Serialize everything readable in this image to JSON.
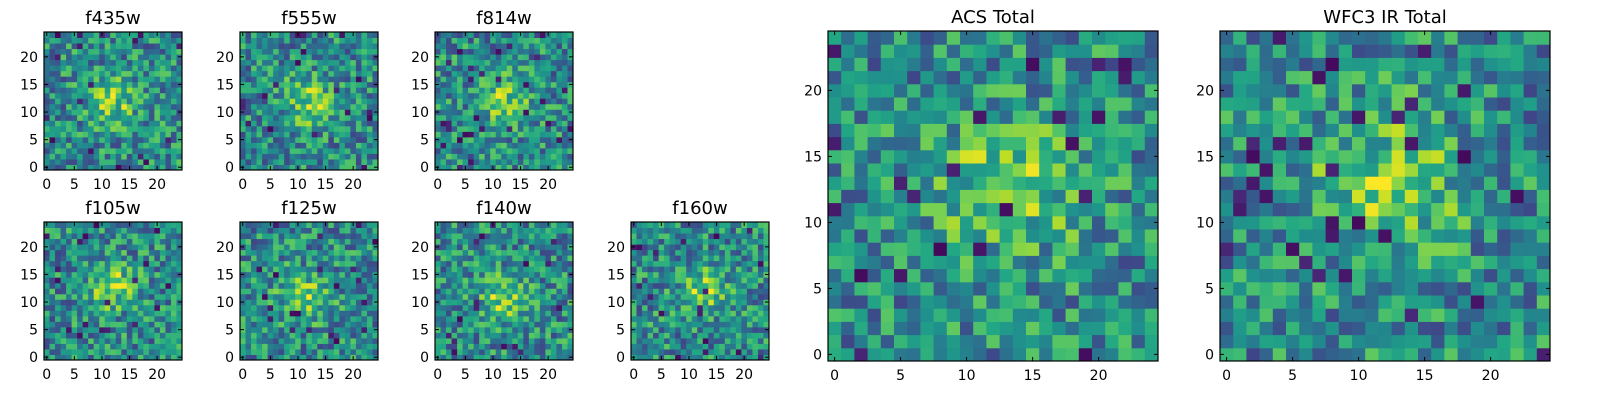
{
  "figure": {
    "colormap": "viridis",
    "grid_size": 25,
    "axis_range": [
      0,
      24
    ],
    "panels_top_row": [
      "f435w",
      "f555w",
      "f814w"
    ],
    "panels_bottom_row": [
      "f105w",
      "f125w",
      "f140w",
      "f160w"
    ],
    "panels_large": [
      "ACS Total",
      "WFC3 IR Total"
    ]
  },
  "chart_data": [
    {
      "type": "heatmap",
      "title": "f435w",
      "xticks": [
        "0",
        "5",
        "10",
        "15",
        "20"
      ],
      "yticks": [
        "0",
        "5",
        "10",
        "15",
        "20"
      ],
      "grid": [
        25,
        25
      ],
      "peak": [
        12,
        12
      ]
    },
    {
      "type": "heatmap",
      "title": "f555w",
      "xticks": [
        "0",
        "5",
        "10",
        "15",
        "20"
      ],
      "yticks": [
        "0",
        "5",
        "10",
        "15",
        "20"
      ],
      "grid": [
        25,
        25
      ],
      "peak": [
        12,
        12
      ]
    },
    {
      "type": "heatmap",
      "title": "f814w",
      "xticks": [
        "0",
        "5",
        "10",
        "15",
        "20"
      ],
      "yticks": [
        "0",
        "5",
        "10",
        "15",
        "20"
      ],
      "grid": [
        25,
        25
      ],
      "peak": [
        12,
        12
      ]
    },
    {
      "type": "heatmap",
      "title": "f105w",
      "xticks": [
        "0",
        "5",
        "10",
        "15",
        "20"
      ],
      "yticks": [
        "0",
        "5",
        "10",
        "15",
        "20"
      ],
      "grid": [
        25,
        25
      ],
      "peak": [
        12,
        13
      ]
    },
    {
      "type": "heatmap",
      "title": "f125w",
      "xticks": [
        "0",
        "5",
        "10",
        "15",
        "20"
      ],
      "yticks": [
        "0",
        "5",
        "10",
        "15",
        "20"
      ],
      "grid": [
        25,
        25
      ],
      "peak": [
        11,
        11
      ]
    },
    {
      "type": "heatmap",
      "title": "f140w",
      "xticks": [
        "0",
        "5",
        "10",
        "15",
        "20"
      ],
      "yticks": [
        "0",
        "5",
        "10",
        "15",
        "20"
      ],
      "grid": [
        25,
        25
      ],
      "peak": [
        12,
        11
      ]
    },
    {
      "type": "heatmap",
      "title": "f160w",
      "xticks": [
        "0",
        "5",
        "10",
        "15",
        "20"
      ],
      "yticks": [
        "0",
        "5",
        "10",
        "15",
        "20"
      ],
      "grid": [
        25,
        25
      ],
      "peak": [
        13,
        12
      ]
    },
    {
      "type": "heatmap",
      "title": "ACS Total",
      "xticks": [
        "0",
        "5",
        "10",
        "15",
        "20"
      ],
      "yticks": [
        "0",
        "5",
        "10",
        "15",
        "20"
      ],
      "grid": [
        25,
        25
      ],
      "peak": [
        13,
        13
      ]
    },
    {
      "type": "heatmap",
      "title": "WFC3 IR Total",
      "xticks": [
        "0",
        "5",
        "10",
        "15",
        "20"
      ],
      "yticks": [
        "0",
        "5",
        "10",
        "15",
        "20"
      ],
      "grid": [
        25,
        25
      ],
      "peak": [
        12,
        13
      ]
    }
  ]
}
